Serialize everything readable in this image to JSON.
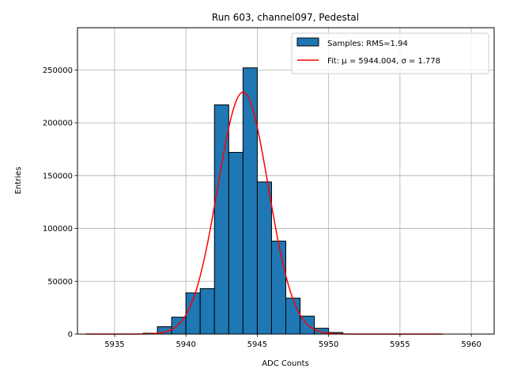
{
  "chart_data": {
    "type": "bar",
    "title": "Run 603, channel097, Pedestal",
    "xlabel": "ADC Counts",
    "ylabel": "Entries",
    "xlim": [
      5932.4,
      5961.6
    ],
    "ylim": [
      0,
      290000
    ],
    "xticks": [
      5935,
      5940,
      5945,
      5950,
      5955,
      5960
    ],
    "yticks": [
      0,
      50000,
      100000,
      150000,
      200000,
      250000
    ],
    "grid": true,
    "legend_position": "top-right",
    "colors": {
      "bars": "#1f77b4",
      "bar_edge": "#000000",
      "fit": "#ff0000",
      "grid": "#b0b0b0"
    },
    "series": [
      {
        "name": "Samples: RMS=1.94",
        "kind": "histogram",
        "bin_width": 1,
        "bins": [
          {
            "x": 5937,
            "y": 800
          },
          {
            "x": 5938,
            "y": 7000
          },
          {
            "x": 5939,
            "y": 16000
          },
          {
            "x": 5940,
            "y": 39000
          },
          {
            "x": 5941,
            "y": 43000
          },
          {
            "x": 5942,
            "y": 217000
          },
          {
            "x": 5943,
            "y": 172000
          },
          {
            "x": 5944,
            "y": 252000
          },
          {
            "x": 5945,
            "y": 144000
          },
          {
            "x": 5946,
            "y": 88000
          },
          {
            "x": 5947,
            "y": 34000
          },
          {
            "x": 5948,
            "y": 17000
          },
          {
            "x": 5949,
            "y": 5500
          },
          {
            "x": 5950,
            "y": 1500
          }
        ]
      },
      {
        "name": "Fit: μ = 5944.004, σ = 1.778",
        "kind": "gaussian",
        "mu": 5944.004,
        "sigma": 1.778,
        "amplitude": 229000,
        "x_range": [
          5933,
          5958
        ]
      }
    ]
  }
}
